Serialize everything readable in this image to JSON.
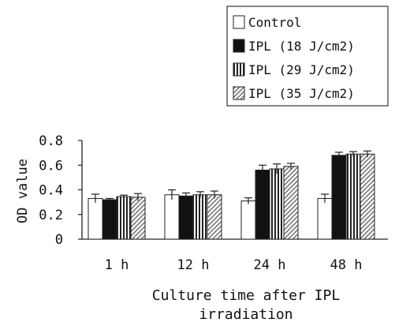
{
  "chart_data": {
    "type": "bar",
    "title": "",
    "xlabel_line1": "Culture time after IPL",
    "xlabel_line2": "irradiation",
    "ylabel": "OD value",
    "ylim": [
      0,
      0.8
    ],
    "yticks": [
      0,
      0.2,
      0.4,
      0.6,
      0.8
    ],
    "ytick_labels": [
      "0",
      "0.2",
      "0.4",
      "0.6",
      "0.8"
    ],
    "categories": [
      "1 h",
      "12 h",
      "24 h",
      "48 h"
    ],
    "legend_position": "top-right",
    "series": [
      {
        "name": "Control",
        "pattern": "white",
        "values": [
          0.33,
          0.36,
          0.31,
          0.33
        ],
        "errors": [
          0.035,
          0.04,
          0.025,
          0.035
        ]
      },
      {
        "name": "IPL (18 J/cm2)",
        "pattern": "black",
        "values": [
          0.32,
          0.35,
          0.56,
          0.68
        ],
        "errors": [
          0.01,
          0.025,
          0.04,
          0.025
        ]
      },
      {
        "name": "IPL (29 J/cm2)",
        "pattern": "vertical-stripes",
        "values": [
          0.345,
          0.36,
          0.57,
          0.69
        ],
        "errors": [
          0.012,
          0.025,
          0.04,
          0.02
        ]
      },
      {
        "name": "IPL (35 J/cm2)",
        "pattern": "diagonal-hatch",
        "values": [
          0.34,
          0.36,
          0.59,
          0.69
        ],
        "errors": [
          0.03,
          0.03,
          0.025,
          0.025
        ]
      }
    ]
  }
}
